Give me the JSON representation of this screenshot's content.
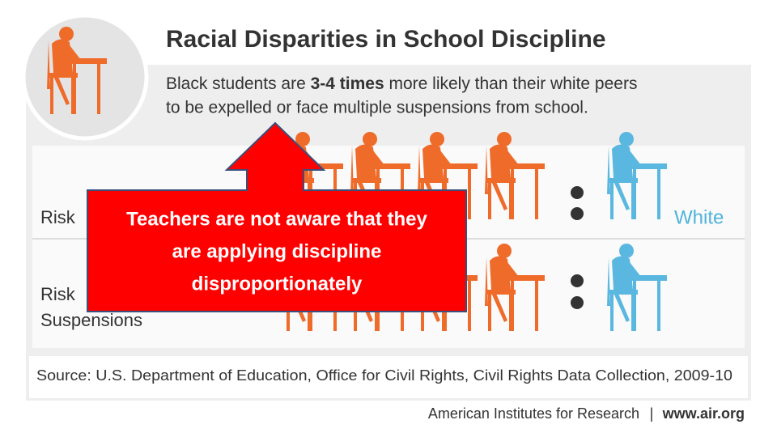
{
  "header": {
    "title": "Racial Disparities in School Discipline",
    "subtitle": {
      "line1_start": "Black students are ",
      "line1_bold": "3-4 times",
      "line1_end": " more likely than their white peers",
      "line2": "to be expelled or face multiple suspensions from school."
    }
  },
  "rows": [
    {
      "label_lines": [
        "Risk"
      ]
    },
    {
      "label_lines": [
        "Risk",
        "Suspensions"
      ]
    }
  ],
  "group_label": "White",
  "callout": {
    "lines": [
      "Teachers are not aware that they",
      "are applying discipline",
      "disproportionately"
    ]
  },
  "source": "Source: U.S. Department of Education, Office for Civil Rights, Civil Rights Data Collection, 2009-10",
  "footer": {
    "organization": "American Institutes for Research",
    "separator": "|",
    "website": "www.air.org"
  }
}
